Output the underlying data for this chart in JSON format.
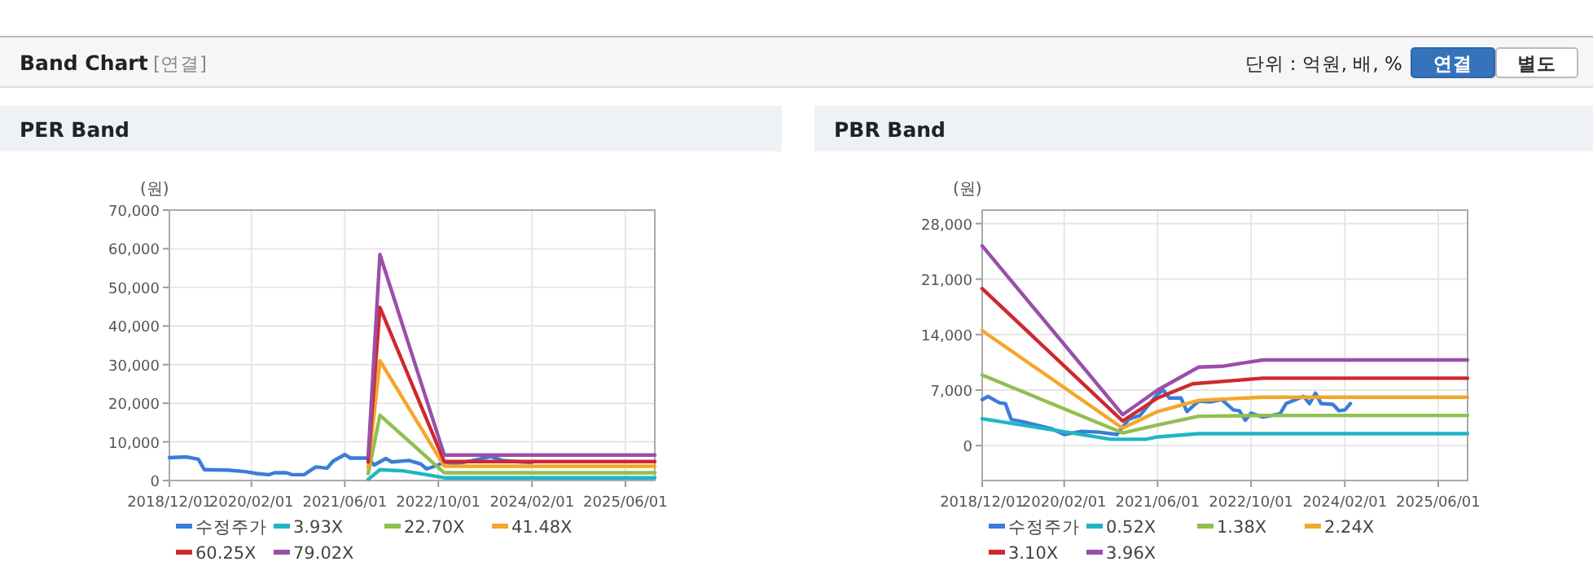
{
  "chart_data": [
    {
      "type": "other",
      "title": "Band Chart",
      "annotations": [
        "[연결]",
        "단위 : 억원, 배, %",
        "연결",
        "별도"
      ]
    },
    {
      "type": "line",
      "title": "PER Band",
      "ylabel": "(원)",
      "grid": true,
      "legend": "bottom",
      "marker": "none",
      "line_style": "solid",
      "xlim": [
        "2018-12-01",
        "2025-11-01"
      ],
      "ylim": [
        0,
        70000
      ],
      "xticks": [
        {
          "value": "2018-12-01",
          "label": "2018/12/01"
        },
        {
          "value": "2020-02-01",
          "label": "2020/02/01"
        },
        {
          "value": "2021-06-01",
          "label": "2021/06/01"
        },
        {
          "value": "2022-10-01",
          "label": "2022/10/01"
        },
        {
          "value": "2024-02-01",
          "label": "2024/02/01"
        },
        {
          "value": "2025-06-01",
          "label": "2025/06/01"
        }
      ],
      "yticks": [
        0,
        {
          "value": 10000,
          "label": "10,000"
        },
        {
          "value": 20000,
          "label": "20,000"
        },
        {
          "value": 30000,
          "label": "30,000"
        },
        {
          "value": 40000,
          "label": "40,000"
        },
        {
          "value": 50000,
          "label": "50,000"
        },
        {
          "value": 60000,
          "label": "60,000"
        },
        {
          "value": 70000,
          "label": "70,000"
        }
      ],
      "series": [
        {
          "name": "수정주가",
          "color": "#3b7dd8",
          "x": [
            "2018-12-01",
            "2019-03-01",
            "2019-05-01",
            "2019-06-01",
            "2019-10-01",
            "2020-01-01",
            "2020-03-01",
            "2020-05-01",
            "2020-06-01",
            "2020-08-01",
            "2020-09-01",
            "2020-11-01",
            "2021-01-01",
            "2021-03-01",
            "2021-04-01",
            "2021-06-01",
            "2021-07-01",
            "2021-10-01",
            "2021-11-01",
            "2022-01-01",
            "2022-02-01",
            "2022-05-01",
            "2022-07-01",
            "2022-08-01",
            "2022-10-01",
            "2022-11-01",
            "2023-01-01",
            "2023-05-01",
            "2023-07-01",
            "2023-09-01",
            "2023-12-01",
            "2024-02-01"
          ],
          "values": [
            5900,
            6100,
            5500,
            2800,
            2700,
            2300,
            1800,
            1500,
            2000,
            2000,
            1500,
            1500,
            3500,
            3200,
            5000,
            6700,
            5800,
            5800,
            4000,
            5700,
            4800,
            5200,
            4300,
            3000,
            4000,
            4800,
            4300,
            5500,
            6200,
            5200,
            4800,
            4700
          ]
        },
        {
          "name": "3.93X",
          "color": "#1fb5c4",
          "x": [
            "2021-10-01",
            "2021-12-01",
            "2022-04-01",
            "2022-08-01",
            "2022-11-01",
            "2025-11-01"
          ],
          "values": [
            300,
            2800,
            2500,
            1500,
            700,
            700
          ]
        },
        {
          "name": "22.70X",
          "color": "#8fc04f",
          "x": [
            "2021-10-01",
            "2021-12-01",
            "2022-11-01",
            "2025-11-01"
          ],
          "values": [
            1800,
            16900,
            2000,
            2000
          ]
        },
        {
          "name": "41.48X",
          "color": "#f4a62a",
          "x": [
            "2021-10-01",
            "2021-12-01",
            "2022-11-01",
            "2025-11-01"
          ],
          "values": [
            3300,
            31000,
            3700,
            3700
          ]
        },
        {
          "name": "60.25X",
          "color": "#d0282e",
          "x": [
            "2021-10-01",
            "2021-12-01",
            "2022-11-01",
            "2025-11-01"
          ],
          "values": [
            4800,
            44800,
            4900,
            4900
          ]
        },
        {
          "name": "79.02X",
          "color": "#9a4fa9",
          "x": [
            "2021-10-01",
            "2021-12-01",
            "2022-11-01",
            "2025-11-01"
          ],
          "values": [
            6300,
            58500,
            6600,
            6600
          ]
        }
      ]
    },
    {
      "type": "line",
      "title": "PBR Band",
      "ylabel": "(원)",
      "grid": true,
      "legend": "bottom",
      "marker": "none",
      "line_style": "solid",
      "xlim": [
        "2018-12-01",
        "2025-11-01"
      ],
      "ylim": [
        -4400,
        29700
      ],
      "xticks": [
        {
          "value": "2018-12-01",
          "label": "2018/12/01"
        },
        {
          "value": "2020-02-01",
          "label": "2020/02/01"
        },
        {
          "value": "2021-06-01",
          "label": "2021/06/01"
        },
        {
          "value": "2022-10-01",
          "label": "2022/10/01"
        },
        {
          "value": "2024-02-01",
          "label": "2024/02/01"
        },
        {
          "value": "2025-06-01",
          "label": "2025/06/01"
        }
      ],
      "yticks": [
        0,
        {
          "value": 7000,
          "label": "7,000"
        },
        {
          "value": 14000,
          "label": "14,000"
        },
        {
          "value": 21000,
          "label": "21,000"
        },
        {
          "value": 28000,
          "label": "28,000"
        }
      ],
      "series": [
        {
          "name": "수정주가",
          "color": "#3b7dd8",
          "x": [
            "2018-12-01",
            "2019-01-01",
            "2019-03-01",
            "2019-04-01",
            "2019-05-01",
            "2019-07-01",
            "2019-12-01",
            "2020-02-01",
            "2020-05-01",
            "2020-08-01",
            "2020-11-01",
            "2021-01-01",
            "2021-03-01",
            "2021-06-01",
            "2021-07-01",
            "2021-08-01",
            "2021-10-01",
            "2021-11-01",
            "2022-01-01",
            "2022-03-01",
            "2022-05-01",
            "2022-07-01",
            "2022-08-01",
            "2022-09-01",
            "2022-10-01",
            "2022-12-01",
            "2023-03-01",
            "2023-04-01",
            "2023-07-01",
            "2023-08-01",
            "2023-09-01",
            "2023-10-01",
            "2023-12-01",
            "2024-01-01",
            "2024-02-01",
            "2024-03-01"
          ],
          "values": [
            5800,
            6200,
            5400,
            5300,
            3300,
            3000,
            2100,
            1400,
            1800,
            1700,
            1400,
            3300,
            3800,
            6500,
            7000,
            6000,
            6000,
            4300,
            5600,
            5500,
            5800,
            4500,
            4400,
            3200,
            4100,
            3600,
            4000,
            5300,
            6200,
            5300,
            6600,
            5300,
            5200,
            4400,
            4500,
            5300
          ]
        },
        {
          "name": "0.52X",
          "color": "#1fb5c4",
          "x": [
            "2018-12-01",
            "2020-10-01",
            "2021-04-01",
            "2021-06-01",
            "2022-01-01",
            "2025-11-01"
          ],
          "values": [
            3400,
            800,
            800,
            1100,
            1500,
            1500
          ]
        },
        {
          "name": "1.38X",
          "color": "#8fc04f",
          "x": [
            "2018-12-01",
            "2020-12-01",
            "2021-06-01",
            "2022-01-01",
            "2022-12-01",
            "2025-11-01"
          ],
          "values": [
            8900,
            1600,
            2600,
            3700,
            3800,
            3800
          ]
        },
        {
          "name": "2.24X",
          "color": "#f4a62a",
          "x": [
            "2018-12-01",
            "2020-12-01",
            "2021-06-01",
            "2022-01-01",
            "2022-09-01",
            "2022-12-01",
            "2025-11-01"
          ],
          "values": [
            14500,
            2200,
            4300,
            5700,
            6000,
            6100,
            6100
          ]
        },
        {
          "name": "3.10X",
          "color": "#d0282e",
          "x": [
            "2018-12-01",
            "2020-12-01",
            "2021-06-01",
            "2021-12-01",
            "2022-12-01",
            "2025-11-01"
          ],
          "values": [
            19800,
            3100,
            6000,
            7800,
            8500,
            8500
          ]
        },
        {
          "name": "3.96X",
          "color": "#9a4fa9",
          "x": [
            "2018-12-01",
            "2020-12-01",
            "2021-06-01",
            "2022-01-01",
            "2022-05-01",
            "2022-12-01",
            "2025-11-01"
          ],
          "values": [
            25200,
            3900,
            7000,
            9900,
            10000,
            10800,
            10800
          ]
        }
      ]
    }
  ]
}
